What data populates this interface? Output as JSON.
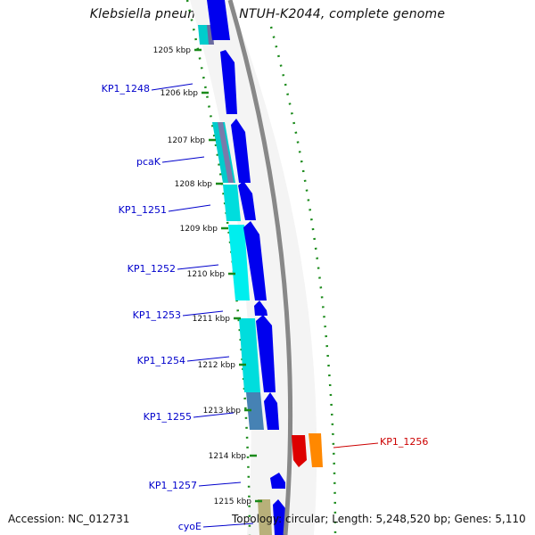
{
  "title": "Klebsiella pneumoniae NTUH-K2044, complete genome",
  "footer": {
    "accession": "Accession: NC_012731",
    "summary": "Topology: circular; Length: 5,248,520 bp; Genes: 5,110"
  },
  "ticks": [
    {
      "label": "1205 kbp"
    },
    {
      "label": "1206 kbp"
    },
    {
      "label": "1207 kbp"
    },
    {
      "label": "1208 kbp"
    },
    {
      "label": "1209 kbp"
    },
    {
      "label": "1210 kbp"
    },
    {
      "label": "1211 kbp"
    },
    {
      "label": "1212 kbp"
    },
    {
      "label": "1213 kbp"
    },
    {
      "label": "1214 kbp"
    },
    {
      "label": "1215 kbp"
    }
  ],
  "gene_labels": [
    {
      "name": "KP1_1248",
      "color": "#0000cc"
    },
    {
      "name": "pcaK",
      "color": "#0000cc"
    },
    {
      "name": "KP1_1251",
      "color": "#0000cc"
    },
    {
      "name": "KP1_1252",
      "color": "#0000cc"
    },
    {
      "name": "KP1_1253",
      "color": "#0000cc"
    },
    {
      "name": "KP1_1254",
      "color": "#0000cc"
    },
    {
      "name": "KP1_1255",
      "color": "#0000cc"
    },
    {
      "name": "KP1_1257",
      "color": "#0000cc"
    },
    {
      "name": "cyoE",
      "color": "#0000cc"
    },
    {
      "name": "KP1_1256",
      "color": "#cc0000"
    }
  ],
  "colors": {
    "cds": "#0000ee",
    "cyan": "#00dddd",
    "steel": "#4682b4",
    "backbone": "#888888",
    "dots": "#1a8a1a",
    "red": "#dd0000",
    "orange": "#ff8800",
    "olive": "#b8b07a"
  }
}
